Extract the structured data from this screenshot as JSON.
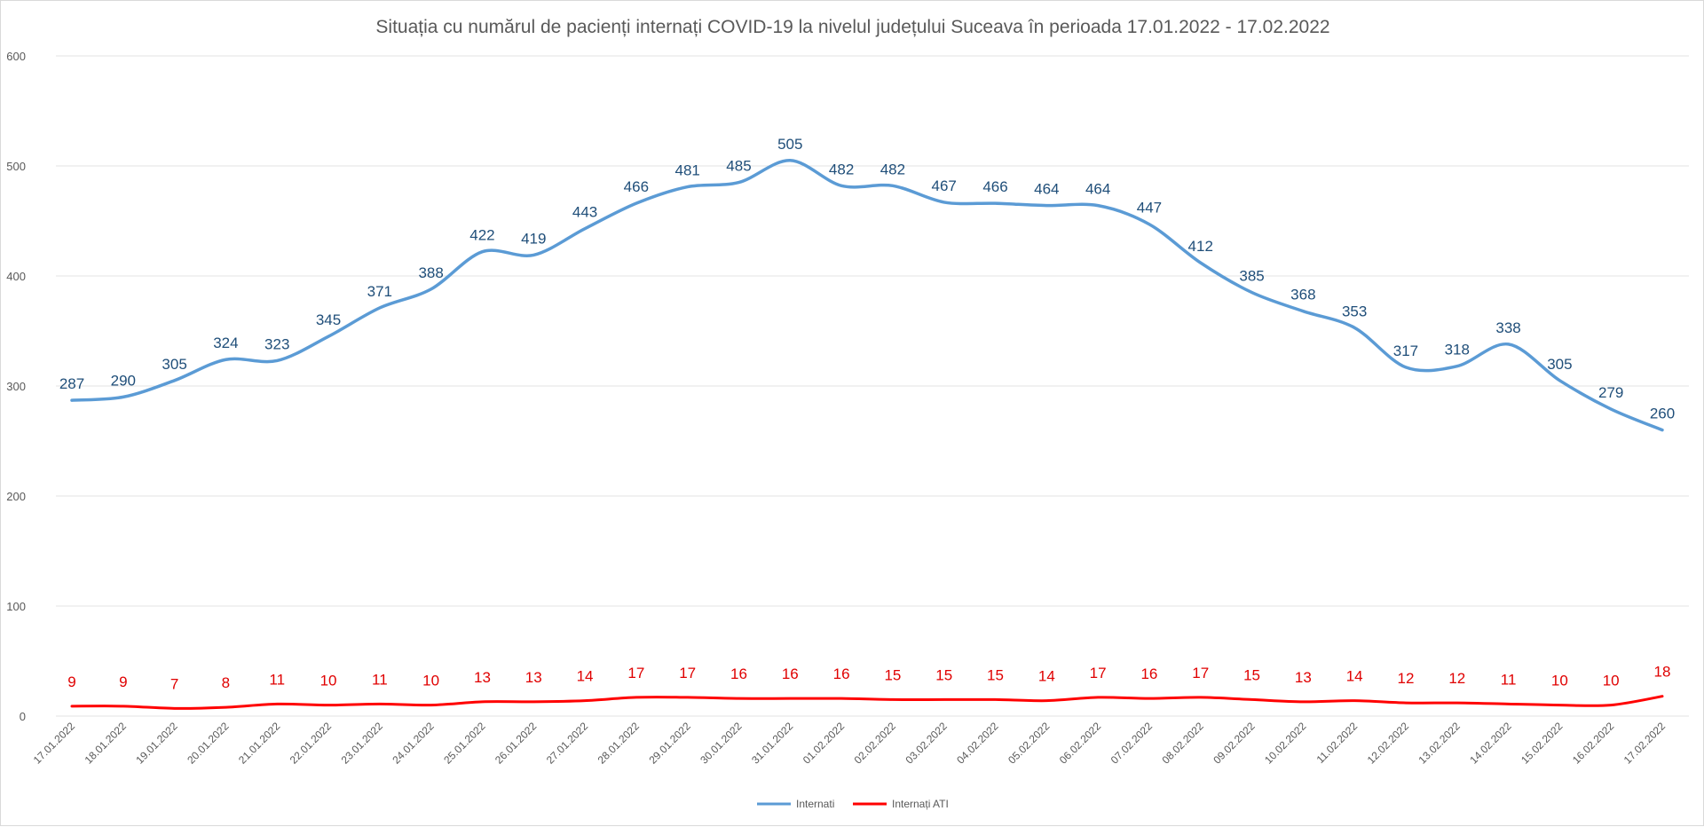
{
  "chart_data": {
    "type": "line",
    "title": "Situația cu numărul de pacienți internați COVID-19 la nivelul județului Suceava în perioada 17.01.2022 - 17.02.2022",
    "xlabel": "",
    "ylabel": "",
    "ylim": [
      0,
      600
    ],
    "yticks": [
      "0",
      "100",
      "200",
      "300",
      "400",
      "500",
      "600"
    ],
    "grid": true,
    "legend_position": "bottom",
    "categories": [
      "17.01.2022",
      "18.01.2022",
      "19.01.2022",
      "20.01.2022",
      "21.01.2022",
      "22.01.2022",
      "23.01.2022",
      "24.01.2022",
      "25.01.2022",
      "26.01.2022",
      "27.01.2022",
      "28.01.2022",
      "29.01.2022",
      "30.01.2022",
      "31.01.2022",
      "01.02.2022",
      "02.02.2022",
      "03.02.2022",
      "04.02.2022",
      "05.02.2022",
      "06.02.2022",
      "07.02.2022",
      "08.02.2022",
      "09.02.2022",
      "10.02.2022",
      "11.02.2022",
      "12.02.2022",
      "13.02.2022",
      "14.02.2022",
      "15.02.2022",
      "16.02.2022",
      "17.02.2022"
    ],
    "series": [
      {
        "name": "Internati",
        "color": "#5b9bd5",
        "label_color": "#1f4e79",
        "values": [
          287,
          290,
          305,
          324,
          323,
          345,
          371,
          388,
          422,
          419,
          443,
          466,
          481,
          485,
          505,
          482,
          482,
          467,
          466,
          464,
          464,
          447,
          412,
          385,
          368,
          353,
          317,
          318,
          338,
          305,
          279,
          260
        ]
      },
      {
        "name": "Internați ATI",
        "color": "#ff0000",
        "label_color": "#e00000",
        "values": [
          9,
          9,
          7,
          8,
          11,
          10,
          11,
          10,
          13,
          13,
          14,
          17,
          17,
          16,
          16,
          16,
          15,
          15,
          15,
          14,
          17,
          16,
          17,
          15,
          13,
          14,
          12,
          12,
          11,
          10,
          10,
          18
        ]
      }
    ]
  }
}
